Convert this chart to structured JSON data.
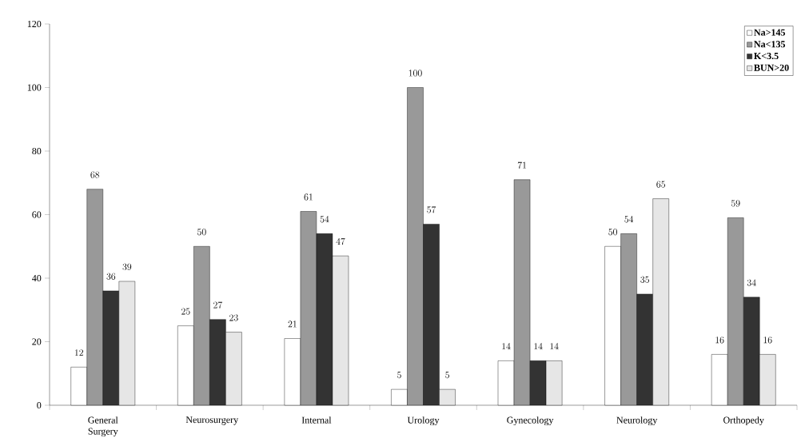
{
  "chart_data": {
    "type": "bar",
    "categories": [
      "General Surgery",
      "Neurosurgery",
      "Internal",
      "Urology",
      "Gynecology",
      "Neurology",
      "Orthopedy"
    ],
    "series": [
      {
        "name": "Na>145",
        "color": "#ffffff",
        "values": [
          12,
          25,
          21,
          5,
          14,
          50,
          16
        ]
      },
      {
        "name": "Na<135",
        "color": "#999999",
        "values": [
          68,
          50,
          61,
          100,
          71,
          54,
          59
        ]
      },
      {
        "name": "K<3.5",
        "color": "#333333",
        "values": [
          36,
          27,
          54,
          57,
          14,
          35,
          34
        ]
      },
      {
        "name": "BUN>20",
        "color": "#e6e6e6",
        "values": [
          39,
          23,
          47,
          5,
          14,
          65,
          16
        ]
      }
    ],
    "ylim": [
      0,
      120
    ],
    "yticks": [
      0,
      20,
      40,
      60,
      80,
      100,
      120
    ],
    "data_labels": true,
    "legend": "top right",
    "grid": false
  }
}
